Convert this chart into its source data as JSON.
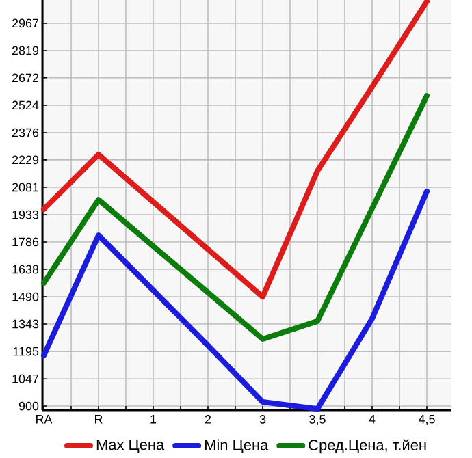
{
  "chart_data": {
    "type": "line",
    "categories": [
      "RA",
      "R",
      "1",
      "2",
      "3",
      "3,5",
      "4",
      "4,5"
    ],
    "series": [
      {
        "name": "Max Цена",
        "color": "#dd1c1c",
        "values": [
          1963,
          2258,
          2002,
          1746,
          1490,
          2169,
          2623,
          3084
        ]
      },
      {
        "name": "Min Цена",
        "color": "#1c1cdd",
        "values": [
          1173,
          1822,
          1525,
          1227,
          922,
          885,
          1372,
          2059
        ]
      },
      {
        "name": "Сред.Цена, т.йен",
        "color": "#0c7c0c",
        "values": [
          1564,
          2014,
          1763,
          1513,
          1262,
          1358,
          1967,
          2575
        ]
      }
    ],
    "ylim": [
      878,
      3092
    ],
    "yticks": [
      900,
      1047,
      1195,
      1343,
      1490,
      1638,
      1786,
      1933,
      2081,
      2229,
      2376,
      2524,
      2672,
      2819,
      2967
    ],
    "grid": true,
    "legend": "bottom",
    "marker": "none",
    "line_style": "solid"
  }
}
